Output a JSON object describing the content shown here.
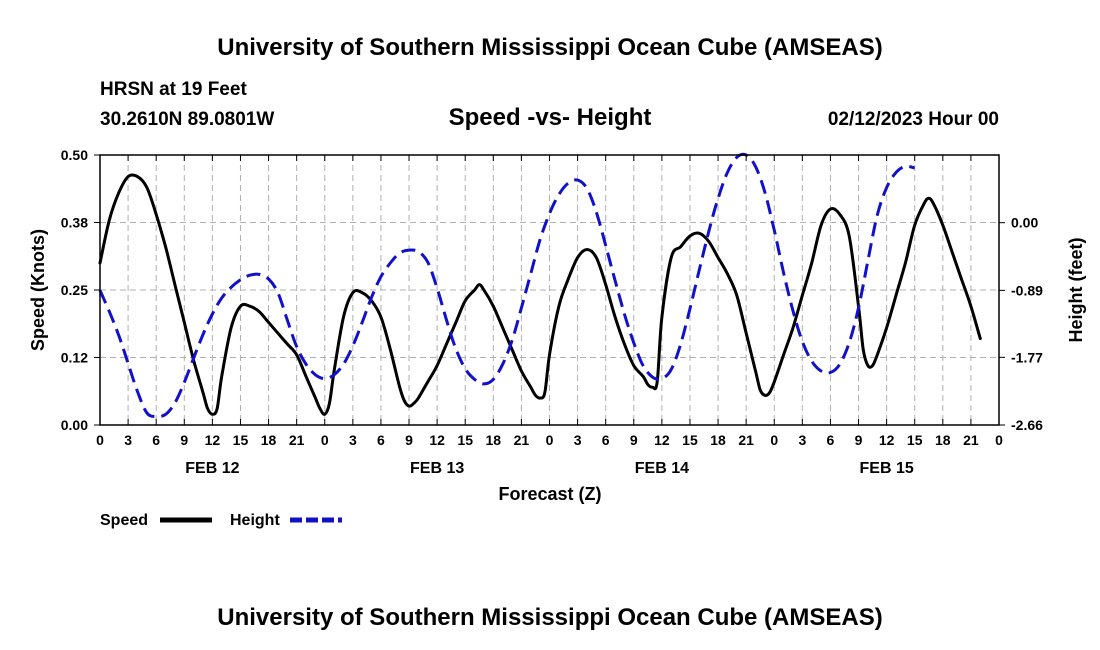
{
  "header": {
    "title": "University of Southern Mississippi Ocean Cube (AMSEAS)",
    "station": "HRSN at 19 Feet",
    "coords": "30.2610N  89.0801W",
    "subtitle": "Speed -vs- Height",
    "datetime": "02/12/2023 Hour 00"
  },
  "footer": {
    "title": "University of Southern Mississippi Ocean Cube (AMSEAS)"
  },
  "chart_data": {
    "type": "line",
    "title": "Speed -vs- Height",
    "xlabel": "Forecast (Z)",
    "ylabel": "Speed (Knots)",
    "y2label": "Height (feet)",
    "xlim": [
      0,
      96
    ],
    "ylim": [
      0,
      0.5
    ],
    "y2lim": [
      -2.66,
      0.89
    ],
    "x_ticks": [
      0,
      3,
      6,
      9,
      12,
      15,
      18,
      21,
      24,
      27,
      30,
      33,
      36,
      39,
      42,
      45,
      48,
      51,
      54,
      57,
      60,
      63,
      66,
      69,
      72,
      75,
      78,
      81,
      84,
      87,
      90,
      93,
      96
    ],
    "x_tick_labels": [
      "0",
      "3",
      "6",
      "9",
      "12",
      "15",
      "18",
      "21",
      "0",
      "3",
      "6",
      "9",
      "12",
      "15",
      "18",
      "21",
      "0",
      "3",
      "6",
      "9",
      "12",
      "15",
      "18",
      "21",
      "0",
      "3",
      "6",
      "9",
      "12",
      "15",
      "18",
      "21",
      "0"
    ],
    "y_ticks": [
      0.0,
      0.125,
      0.25,
      0.375,
      0.5
    ],
    "y_tick_labels": [
      "0.00",
      "0.12",
      "0.25",
      "0.38",
      "0.50"
    ],
    "y2_ticks": [
      -2.66,
      -1.77,
      -0.89,
      0.0
    ],
    "y2_tick_labels": [
      "-2.66",
      "-1.77",
      "-0.89",
      "0.00"
    ],
    "date_labels": [
      {
        "x": 12,
        "label": "FEB 12"
      },
      {
        "x": 36,
        "label": "FEB 13"
      },
      {
        "x": 60,
        "label": "FEB 14"
      },
      {
        "x": 84,
        "label": "FEB 15"
      }
    ],
    "grid": true,
    "legend_position": "bottom-left",
    "series": [
      {
        "name": "Speed",
        "axis": "left",
        "color": "#000000",
        "style": "solid",
        "points": [
          [
            0,
            0.3
          ],
          [
            1,
            0.38
          ],
          [
            2,
            0.43
          ],
          [
            3,
            0.46
          ],
          [
            4,
            0.46
          ],
          [
            5,
            0.44
          ],
          [
            6,
            0.39
          ],
          [
            7,
            0.33
          ],
          [
            8,
            0.26
          ],
          [
            9,
            0.19
          ],
          [
            10,
            0.12
          ],
          [
            11,
            0.06
          ],
          [
            11.5,
            0.03
          ],
          [
            12,
            0.02
          ],
          [
            12.5,
            0.03
          ],
          [
            13,
            0.09
          ],
          [
            14,
            0.18
          ],
          [
            15,
            0.22
          ],
          [
            16,
            0.22
          ],
          [
            17,
            0.21
          ],
          [
            18,
            0.19
          ],
          [
            19,
            0.17
          ],
          [
            20,
            0.15
          ],
          [
            21,
            0.13
          ],
          [
            22,
            0.09
          ],
          [
            23,
            0.05
          ],
          [
            23.5,
            0.03
          ],
          [
            24,
            0.02
          ],
          [
            24.5,
            0.04
          ],
          [
            25,
            0.1
          ],
          [
            26,
            0.2
          ],
          [
            27,
            0.245
          ],
          [
            28,
            0.245
          ],
          [
            29,
            0.23
          ],
          [
            30,
            0.2
          ],
          [
            31,
            0.14
          ],
          [
            32,
            0.07
          ],
          [
            32.5,
            0.045
          ],
          [
            33,
            0.035
          ],
          [
            33.5,
            0.04
          ],
          [
            34,
            0.05
          ],
          [
            35,
            0.08
          ],
          [
            36,
            0.11
          ],
          [
            37,
            0.15
          ],
          [
            38,
            0.19
          ],
          [
            39,
            0.23
          ],
          [
            40,
            0.25
          ],
          [
            40.5,
            0.26
          ],
          [
            41,
            0.25
          ],
          [
            42,
            0.22
          ],
          [
            43,
            0.18
          ],
          [
            44,
            0.14
          ],
          [
            45,
            0.1
          ],
          [
            46,
            0.07
          ],
          [
            46.5,
            0.055
          ],
          [
            47,
            0.05
          ],
          [
            47.5,
            0.06
          ],
          [
            48,
            0.13
          ],
          [
            49,
            0.22
          ],
          [
            50,
            0.27
          ],
          [
            51,
            0.31
          ],
          [
            52,
            0.325
          ],
          [
            53,
            0.31
          ],
          [
            54,
            0.26
          ],
          [
            55,
            0.2
          ],
          [
            56,
            0.15
          ],
          [
            57,
            0.11
          ],
          [
            58,
            0.09
          ],
          [
            58.5,
            0.075
          ],
          [
            59,
            0.07
          ],
          [
            59.5,
            0.08
          ],
          [
            60,
            0.2
          ],
          [
            61,
            0.31
          ],
          [
            62,
            0.33
          ],
          [
            63,
            0.35
          ],
          [
            64,
            0.355
          ],
          [
            65,
            0.34
          ],
          [
            66,
            0.31
          ],
          [
            67,
            0.28
          ],
          [
            68,
            0.24
          ],
          [
            69,
            0.17
          ],
          [
            70,
            0.1
          ],
          [
            70.5,
            0.065
          ],
          [
            71,
            0.055
          ],
          [
            71.5,
            0.06
          ],
          [
            72,
            0.08
          ],
          [
            73,
            0.13
          ],
          [
            74,
            0.18
          ],
          [
            75,
            0.24
          ],
          [
            76,
            0.3
          ],
          [
            77,
            0.37
          ],
          [
            78,
            0.4
          ],
          [
            79,
            0.39
          ],
          [
            80,
            0.35
          ],
          [
            81,
            0.22
          ],
          [
            81.5,
            0.14
          ],
          [
            82,
            0.11
          ],
          [
            82.5,
            0.11
          ],
          [
            83,
            0.13
          ],
          [
            84,
            0.18
          ],
          [
            85,
            0.24
          ],
          [
            86,
            0.3
          ],
          [
            87,
            0.37
          ],
          [
            88,
            0.41
          ],
          [
            88.5,
            0.42
          ],
          [
            89,
            0.41
          ],
          [
            90,
            0.37
          ],
          [
            91,
            0.32
          ],
          [
            92,
            0.27
          ],
          [
            93,
            0.22
          ],
          [
            94,
            0.16
          ]
        ]
      },
      {
        "name": "Height",
        "axis": "right",
        "color": "#1111cc",
        "style": "dashed",
        "points": [
          [
            0,
            -0.89
          ],
          [
            1,
            -1.17
          ],
          [
            2,
            -1.48
          ],
          [
            3,
            -1.85
          ],
          [
            4,
            -2.22
          ],
          [
            5,
            -2.5
          ],
          [
            6,
            -2.55
          ],
          [
            7,
            -2.52
          ],
          [
            8,
            -2.37
          ],
          [
            9,
            -2.1
          ],
          [
            10,
            -1.78
          ],
          [
            11,
            -1.47
          ],
          [
            12,
            -1.2
          ],
          [
            13,
            -0.99
          ],
          [
            14,
            -0.85
          ],
          [
            15,
            -0.75
          ],
          [
            16,
            -0.69
          ],
          [
            17,
            -0.68
          ],
          [
            18,
            -0.74
          ],
          [
            19,
            -0.92
          ],
          [
            20,
            -1.28
          ],
          [
            21,
            -1.63
          ],
          [
            22,
            -1.86
          ],
          [
            23,
            -2.0
          ],
          [
            24,
            -2.05
          ],
          [
            25,
            -2.0
          ],
          [
            26,
            -1.86
          ],
          [
            27,
            -1.62
          ],
          [
            28,
            -1.31
          ],
          [
            29,
            -0.98
          ],
          [
            30,
            -0.71
          ],
          [
            31,
            -0.53
          ],
          [
            32,
            -0.4
          ],
          [
            33,
            -0.36
          ],
          [
            34,
            -0.38
          ],
          [
            35,
            -0.52
          ],
          [
            36,
            -0.86
          ],
          [
            37,
            -1.28
          ],
          [
            38,
            -1.66
          ],
          [
            39,
            -1.92
          ],
          [
            40,
            -2.06
          ],
          [
            41,
            -2.12
          ],
          [
            42,
            -2.06
          ],
          [
            43,
            -1.86
          ],
          [
            44,
            -1.55
          ],
          [
            45,
            -1.12
          ],
          [
            46,
            -0.67
          ],
          [
            47,
            -0.22
          ],
          [
            48,
            0.12
          ],
          [
            49,
            0.37
          ],
          [
            50,
            0.52
          ],
          [
            51,
            0.56
          ],
          [
            52,
            0.45
          ],
          [
            53,
            0.14
          ],
          [
            54,
            -0.3
          ],
          [
            55,
            -0.76
          ],
          [
            56,
            -1.2
          ],
          [
            57,
            -1.58
          ],
          [
            58,
            -1.88
          ],
          [
            59,
            -2.03
          ],
          [
            60,
            -2.05
          ],
          [
            61,
            -1.93
          ],
          [
            62,
            -1.6
          ],
          [
            63,
            -1.13
          ],
          [
            64,
            -0.62
          ],
          [
            65,
            -0.12
          ],
          [
            66,
            0.32
          ],
          [
            67,
            0.66
          ],
          [
            68,
            0.86
          ],
          [
            69,
            0.89
          ],
          [
            70,
            0.74
          ],
          [
            71,
            0.4
          ],
          [
            72,
            -0.1
          ],
          [
            73,
            -0.66
          ],
          [
            74,
            -1.16
          ],
          [
            75,
            -1.56
          ],
          [
            76,
            -1.82
          ],
          [
            77,
            -1.95
          ],
          [
            78,
            -1.97
          ],
          [
            79,
            -1.86
          ],
          [
            80,
            -1.58
          ],
          [
            81,
            -1.12
          ],
          [
            82,
            -0.5
          ],
          [
            83,
            0.1
          ],
          [
            84,
            0.46
          ],
          [
            85,
            0.66
          ],
          [
            86,
            0.74
          ],
          [
            87,
            0.72
          ]
        ]
      }
    ]
  },
  "legend": [
    {
      "label": "Speed",
      "color": "#000000",
      "style": "solid"
    },
    {
      "label": "Height",
      "color": "#1111cc",
      "style": "dashed"
    }
  ]
}
